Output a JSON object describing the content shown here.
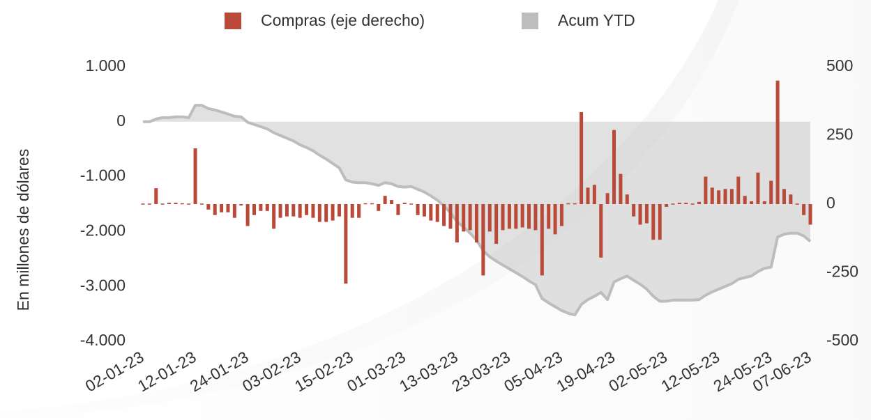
{
  "chart_data": {
    "type": "bar",
    "y_axis_label": "En millones de dólares",
    "categories": [
      "02-01-23",
      null,
      null,
      null,
      null,
      null,
      null,
      null,
      "12-01-23",
      null,
      null,
      null,
      null,
      null,
      null,
      null,
      "24-01-23",
      null,
      null,
      null,
      null,
      null,
      null,
      null,
      "03-02-23",
      null,
      null,
      null,
      null,
      null,
      null,
      null,
      "15-02-23",
      null,
      null,
      null,
      null,
      null,
      null,
      null,
      "01-03-23",
      null,
      null,
      null,
      null,
      null,
      null,
      null,
      "13-03-23",
      null,
      null,
      null,
      null,
      null,
      null,
      null,
      "23-03-23",
      null,
      null,
      null,
      null,
      null,
      null,
      null,
      "05-04-23",
      null,
      null,
      null,
      null,
      null,
      null,
      null,
      "19-04-23",
      null,
      null,
      null,
      null,
      null,
      null,
      null,
      "02-05-23",
      null,
      null,
      null,
      null,
      null,
      null,
      null,
      "12-05-23",
      null,
      null,
      null,
      null,
      null,
      null,
      null,
      "24-05-23",
      null,
      null,
      null,
      null,
      null,
      "07-06-23"
    ],
    "series": [
      {
        "name": "Compras (eje derecho)",
        "type": "bar",
        "axis": "y2",
        "color": "#b94a3a",
        "values": [
          2,
          0,
          58,
          0,
          5,
          5,
          3,
          0,
          203,
          2,
          -20,
          -40,
          -30,
          -30,
          -50,
          -5,
          -80,
          -40,
          -25,
          -25,
          -90,
          -50,
          -45,
          -45,
          -50,
          -40,
          -50,
          -65,
          -65,
          -60,
          -45,
          -290,
          -50,
          -50,
          3,
          3,
          -25,
          30,
          15,
          -40,
          5,
          0,
          -40,
          -45,
          -60,
          -65,
          -80,
          -90,
          -140,
          -100,
          -95,
          -140,
          -260,
          -100,
          -145,
          -95,
          -90,
          -90,
          -85,
          -90,
          -95,
          -260,
          -90,
          -110,
          -80,
          3,
          3,
          335,
          60,
          70,
          -195,
          40,
          270,
          110,
          35,
          -45,
          -75,
          -70,
          -130,
          -130,
          -10,
          0,
          5,
          5,
          0,
          8,
          100,
          60,
          50,
          55,
          55,
          100,
          30,
          10,
          115,
          10,
          85,
          450,
          55,
          35,
          0,
          -40,
          -75
        ]
      },
      {
        "name": "Acum YTD",
        "type": "area",
        "color": "#bdbdbd",
        "values": [
          0,
          0,
          50,
          75,
          75,
          90,
          90,
          75,
          300,
          300,
          240,
          215,
          180,
          140,
          100,
          90,
          -10,
          -50,
          -90,
          -130,
          -200,
          -250,
          -300,
          -350,
          -420,
          -470,
          -530,
          -610,
          -680,
          -760,
          -840,
          -1060,
          -1100,
          -1110,
          -1110,
          -1130,
          -1160,
          -1110,
          -1130,
          -1180,
          -1190,
          -1180,
          -1230,
          -1280,
          -1350,
          -1430,
          -1530,
          -1660,
          -1820,
          -1920,
          -2030,
          -2160,
          -2350,
          -2460,
          -2540,
          -2610,
          -2680,
          -2750,
          -2820,
          -2900,
          -2970,
          -3220,
          -3300,
          -3370,
          -3440,
          -3490,
          -3520,
          -3330,
          -3240,
          -3180,
          -3110,
          -3240,
          -2920,
          -2860,
          -2810,
          -2890,
          -2960,
          -3050,
          -3180,
          -3270,
          -3270,
          -3250,
          -3250,
          -3250,
          -3250,
          -3240,
          -3160,
          -3100,
          -3050,
          -3000,
          -2950,
          -2870,
          -2840,
          -2810,
          -2730,
          -2670,
          -2650,
          -2100,
          -2050,
          -2030,
          -2030,
          -2080,
          -2180
        ]
      }
    ],
    "ylim": [
      -4000,
      1000
    ],
    "yticks": [
      {
        "value": 1000,
        "label": "1.000"
      },
      0,
      {
        "value": -1000,
        "label": "-1.000"
      },
      {
        "value": -2000,
        "label": "-2.000"
      },
      {
        "value": -3000,
        "label": "-3.000"
      },
      {
        "value": -4000,
        "label": "-4.000"
      }
    ],
    "y2lim": [
      -500,
      500
    ],
    "y2ticks": [
      500,
      250,
      0,
      -250,
      -500
    ],
    "legend": "top"
  }
}
